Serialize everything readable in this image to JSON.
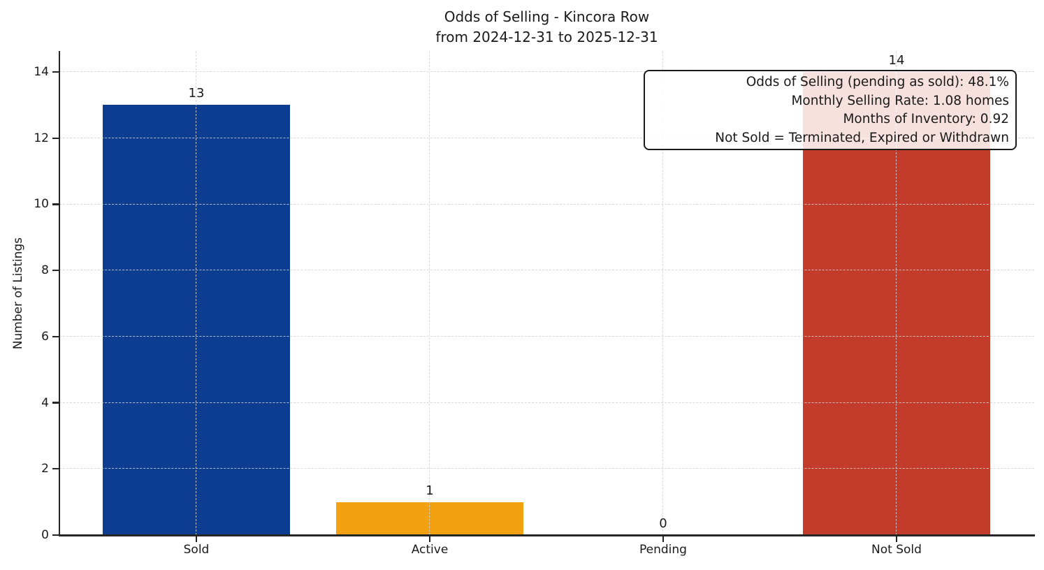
{
  "title": {
    "line1": "Odds of Selling - Kincora Row",
    "line2": "from 2024-12-31 to 2025-12-31"
  },
  "chart_data": {
    "type": "bar",
    "title": "Odds of Selling - Kincora Row",
    "subtitle": "from 2024-12-31 to 2025-12-31",
    "categories": [
      "Sold",
      "Active",
      "Pending",
      "Not Sold"
    ],
    "values": [
      13,
      1,
      0,
      14
    ],
    "value_labels": [
      "13",
      "1",
      "0",
      "14"
    ],
    "bar_colors": [
      "#0d3d91",
      "#f2a211",
      null,
      "#c33b2b"
    ],
    "xlabel": "",
    "ylabel": "Number of Listings",
    "yticks": [
      0,
      2,
      4,
      6,
      8,
      10,
      12,
      14
    ],
    "ylim": [
      0,
      14.65
    ],
    "grid": "dashed, horizontal and vertical, drawn over bars",
    "legend": "none",
    "annotation": {
      "lines": [
        "Odds of Selling (pending as sold): 48.1%",
        "Monthly Selling Rate: 1.08 homes",
        "Months of Inventory: 0.92",
        "Not Sold = Terminated, Expired or Withdrawn"
      ]
    }
  },
  "colors": {
    "sold_bar": "#0d3d91",
    "active_bar": "#f2a211",
    "not_sold_bar": "#c33b2b",
    "axis": "#262626",
    "gridline": "#d2d2d2",
    "annotation_bg": "rgba(255,255,255,0.85)"
  }
}
